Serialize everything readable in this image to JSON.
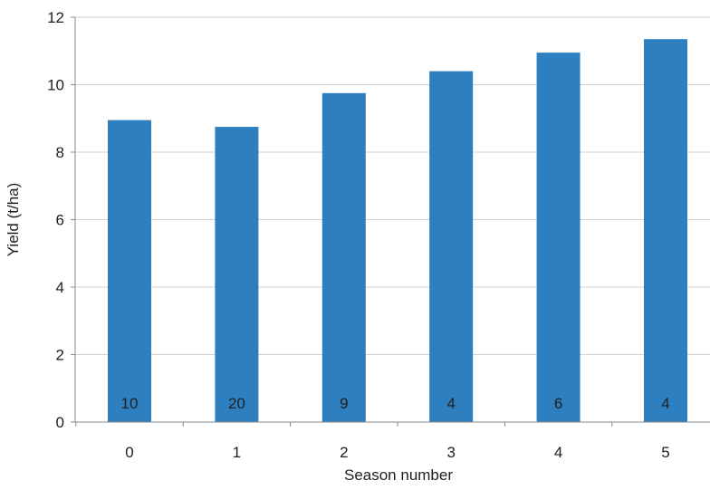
{
  "chart_data": {
    "type": "bar",
    "title": "",
    "xlabel": "Season number",
    "ylabel": "Yield (t/ha)",
    "categories": [
      "0",
      "1",
      "2",
      "3",
      "4",
      "5"
    ],
    "values": [
      8.95,
      8.75,
      9.75,
      10.4,
      10.95,
      11.35
    ],
    "bar_labels": [
      "10",
      "20",
      "9",
      "4",
      "6",
      "4"
    ],
    "ylim": [
      0,
      12
    ],
    "yticks": [
      "0",
      "2",
      "4",
      "6",
      "8",
      "10",
      "12"
    ],
    "grid": true,
    "legend": "none",
    "bar_color": "#2e7fc0",
    "grid_color": "#d0d0d0",
    "axis_color": "#888888"
  }
}
